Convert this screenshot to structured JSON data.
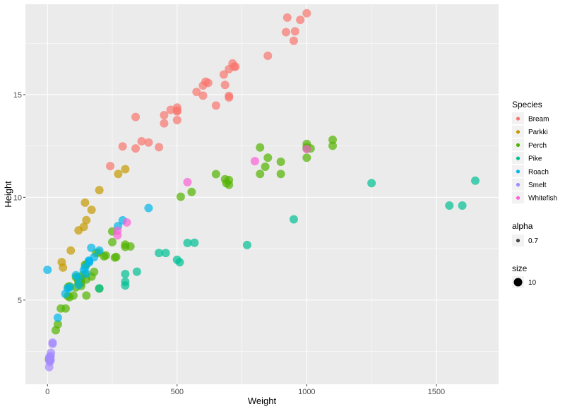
{
  "chart_data": {
    "type": "scatter",
    "title": "",
    "xlabel": "Weight",
    "ylabel": "Height",
    "xlim": [
      -85,
      1740
    ],
    "ylim": [
      0.9,
      19.4
    ],
    "x_ticks": [
      0,
      500,
      1000,
      1500
    ],
    "y_ticks": [
      5,
      10,
      15
    ],
    "grid": true,
    "legend_position": "right",
    "series": [
      {
        "name": "Bream",
        "color": "#F8766D",
        "points": [
          [
            242,
            11.52
          ],
          [
            290,
            12.48
          ],
          [
            340,
            12.38
          ],
          [
            363,
            12.73
          ],
          [
            430,
            12.44
          ],
          [
            450,
            13.6
          ],
          [
            500,
            14.18
          ],
          [
            390,
            12.67
          ],
          [
            450,
            14.0
          ],
          [
            500,
            14.23
          ],
          [
            475,
            14.26
          ],
          [
            500,
            14.37
          ],
          [
            500,
            13.76
          ],
          [
            340,
            13.91
          ],
          [
            600,
            14.95
          ],
          [
            600,
            15.44
          ],
          [
            700,
            14.86
          ],
          [
            700,
            14.94
          ],
          [
            610,
            15.63
          ],
          [
            650,
            14.47
          ],
          [
            575,
            15.13
          ],
          [
            685,
            15.47
          ],
          [
            620,
            15.57
          ],
          [
            680,
            15.98
          ],
          [
            700,
            16.24
          ],
          [
            725,
            16.36
          ],
          [
            720,
            16.36
          ],
          [
            714,
            16.52
          ],
          [
            850,
            16.89
          ],
          [
            1000,
            18.96
          ],
          [
            920,
            18.04
          ],
          [
            955,
            18.08
          ],
          [
            925,
            18.75
          ],
          [
            975,
            18.64
          ],
          [
            950,
            17.62
          ]
        ]
      },
      {
        "name": "Parkki",
        "color": "#C49A00",
        "points": [
          [
            55,
            6.85
          ],
          [
            60,
            6.58
          ],
          [
            90,
            7.41
          ],
          [
            120,
            8.39
          ],
          [
            150,
            8.89
          ],
          [
            140,
            8.56
          ],
          [
            170,
            9.39
          ],
          [
            145,
            9.74
          ],
          [
            200,
            10.35
          ],
          [
            273,
            11.14
          ],
          [
            300,
            11.37
          ]
        ]
      },
      {
        "name": "Perch",
        "color": "#53B400",
        "points": [
          [
            5.9,
            2.11
          ],
          [
            32,
            3.53
          ],
          [
            40,
            3.82
          ],
          [
            51.5,
            4.59
          ],
          [
            70,
            4.59
          ],
          [
            100,
            5.22
          ],
          [
            78,
            5.2
          ],
          [
            80,
            5.64
          ],
          [
            85,
            5.14
          ],
          [
            85,
            5.67
          ],
          [
            110,
            5.62
          ],
          [
            115,
            6.12
          ],
          [
            125,
            5.8
          ],
          [
            130,
            6.03
          ],
          [
            120,
            5.9
          ],
          [
            120,
            5.9
          ],
          [
            130,
            5.84
          ],
          [
            135,
            6.21
          ],
          [
            110,
            6.11
          ],
          [
            130,
            5.69
          ],
          [
            150,
            6.0
          ],
          [
            145,
            6.72
          ],
          [
            150,
            6.72
          ],
          [
            170,
            6.14
          ],
          [
            225,
            7.17
          ],
          [
            145,
            6.27
          ],
          [
            188,
            7.29
          ],
          [
            180,
            6.37
          ],
          [
            197,
            7.31
          ],
          [
            218,
            7.13
          ],
          [
            300,
            7.59
          ],
          [
            260,
            7.07
          ],
          [
            265,
            7.1
          ],
          [
            250,
            7.82
          ],
          [
            250,
            8.34
          ],
          [
            300,
            7.7
          ],
          [
            320,
            7.61
          ],
          [
            514,
            10.03
          ],
          [
            556,
            10.26
          ],
          [
            840,
            11.49
          ],
          [
            685,
            10.88
          ],
          [
            700,
            10.61
          ],
          [
            700,
            10.84
          ],
          [
            690,
            10.69
          ],
          [
            900,
            11.14
          ],
          [
            650,
            11.13
          ],
          [
            820,
            11.14
          ],
          [
            850,
            11.93
          ],
          [
            900,
            11.73
          ],
          [
            1015,
            12.38
          ],
          [
            820,
            12.43
          ],
          [
            1100,
            12.51
          ],
          [
            1000,
            12.44
          ],
          [
            1100,
            12.8
          ],
          [
            1000,
            12.38
          ],
          [
            1000,
            12.6
          ],
          [
            200,
            5.56
          ],
          [
            1000,
            11.93
          ],
          [
            150,
            5.22
          ]
        ]
      },
      {
        "name": "Pike",
        "color": "#00C094",
        "points": [
          [
            200,
            5.57
          ],
          [
            300,
            5.89
          ],
          [
            300,
            5.71
          ],
          [
            300,
            6.27
          ],
          [
            430,
            7.29
          ],
          [
            345,
            6.38
          ],
          [
            456,
            7.29
          ],
          [
            510,
            6.84
          ],
          [
            540,
            7.78
          ],
          [
            500,
            6.96
          ],
          [
            567,
            7.79
          ],
          [
            770,
            7.68
          ],
          [
            950,
            8.93
          ],
          [
            1250,
            10.69
          ],
          [
            1600,
            9.6
          ],
          [
            1550,
            9.6
          ],
          [
            1650,
            10.81
          ]
        ]
      },
      {
        "name": "Roach",
        "color": "#00B6EB",
        "points": [
          [
            0,
            6.47
          ],
          [
            40,
            4.14
          ],
          [
            69,
            5.3
          ],
          [
            78,
            5.57
          ],
          [
            87,
            5.62
          ],
          [
            120,
            5.74
          ],
          [
            110,
            6.21
          ],
          [
            120,
            6.07
          ],
          [
            150,
            6.29
          ],
          [
            145,
            6.59
          ],
          [
            160,
            6.92
          ],
          [
            140,
            6.45
          ],
          [
            160,
            6.88
          ],
          [
            169,
            7.54
          ],
          [
            161,
            6.84
          ],
          [
            200,
            7.41
          ],
          [
            180,
            7.09
          ],
          [
            290,
            8.88
          ],
          [
            272,
            8.6
          ],
          [
            390,
            9.48
          ]
        ]
      },
      {
        "name": "Smelt",
        "color": "#A58AFF",
        "points": [
          [
            6.7,
            1.74
          ],
          [
            7.5,
            2.11
          ],
          [
            7.0,
            2.21
          ],
          [
            9.7,
            2.21
          ],
          [
            9.8,
            2.09
          ],
          [
            8.7,
            1.99
          ],
          [
            10.0,
            2.05
          ],
          [
            9.9,
            2.21
          ],
          [
            9.8,
            2.21
          ],
          [
            12.2,
            2.08
          ],
          [
            13.4,
            2.43
          ],
          [
            12.2,
            2.28
          ],
          [
            19.7,
            2.87
          ],
          [
            19.9,
            2.93
          ]
        ]
      },
      {
        "name": "Whitefish",
        "color": "#FB61D7",
        "points": [
          [
            270,
            8.38
          ],
          [
            270,
            8.15
          ],
          [
            306,
            8.78
          ],
          [
            540,
            10.74
          ],
          [
            800,
            11.76
          ],
          [
            1000,
            12.35
          ]
        ]
      }
    ],
    "alpha_legend": {
      "title": "alpha",
      "value": "0.7"
    },
    "size_legend": {
      "title": "size",
      "value": "10"
    }
  }
}
